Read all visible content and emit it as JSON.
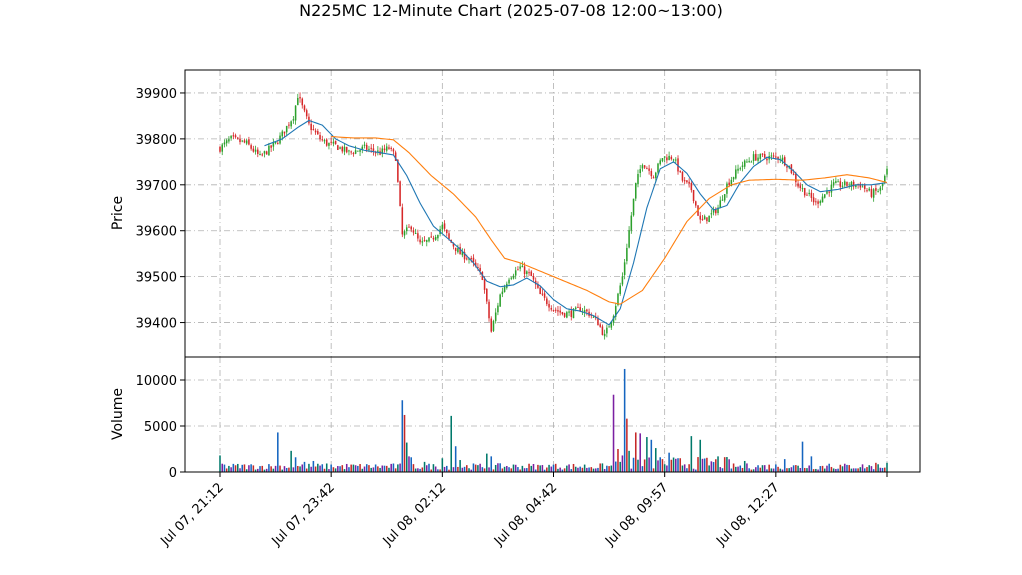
{
  "chart_data": {
    "type": "candlestick",
    "title": "N225MC 12-Minute Chart (2025-07-08 12:00~13:00)",
    "price_panel": {
      "ylabel": "Price",
      "ylim": [
        39325,
        39950
      ],
      "yticks": [
        39400,
        39500,
        39600,
        39700,
        39800,
        39900
      ],
      "grid": true
    },
    "volume_panel": {
      "ylabel": "Volume",
      "ylim": [
        0,
        12500
      ],
      "yticks": [
        0,
        5000,
        10000
      ],
      "grid": true
    },
    "x_ticks": [
      {
        "label": "Jul 07, 21:12",
        "index": 0
      },
      {
        "label": "Jul 07, 23:42",
        "index": 50
      },
      {
        "label": "Jul 08, 02:12",
        "index": 100
      },
      {
        "label": "Jul 08, 04:42",
        "index": 150
      },
      {
        "label": "Jul 08, 09:57",
        "index": 200
      },
      {
        "label": "Jul 08, 12:27",
        "index": 250
      },
      {
        "label": "",
        "index": 300
      }
    ],
    "bar_count": 301,
    "colors": {
      "up": "#2ca02c",
      "down": "#d62728",
      "ma_short": "#1f77b4",
      "ma_long": "#ff7f0e",
      "volume": [
        "#00796b",
        "#7b1fa2",
        "#1565c0",
        "#c62828"
      ],
      "grid": "#b0b0b0"
    },
    "close_anchors": [
      [
        0,
        39780
      ],
      [
        5,
        39800
      ],
      [
        12,
        39790
      ],
      [
        18,
        39760
      ],
      [
        25,
        39790
      ],
      [
        28,
        39810
      ],
      [
        33,
        39850
      ],
      [
        35,
        39895
      ],
      [
        40,
        39830
      ],
      [
        45,
        39800
      ],
      [
        48,
        39790
      ],
      [
        52,
        39785
      ],
      [
        58,
        39770
      ],
      [
        65,
        39780
      ],
      [
        72,
        39770
      ],
      [
        76,
        39780
      ],
      [
        79,
        39760
      ],
      [
        82,
        39590
      ],
      [
        86,
        39610
      ],
      [
        90,
        39570
      ],
      [
        95,
        39580
      ],
      [
        100,
        39610
      ],
      [
        103,
        39580
      ],
      [
        108,
        39550
      ],
      [
        112,
        39540
      ],
      [
        118,
        39500
      ],
      [
        122,
        39380
      ],
      [
        126,
        39460
      ],
      [
        130,
        39500
      ],
      [
        135,
        39520
      ],
      [
        140,
        39500
      ],
      [
        144,
        39460
      ],
      [
        150,
        39430
      ],
      [
        154,
        39420
      ],
      [
        158,
        39420
      ],
      [
        162,
        39430
      ],
      [
        166,
        39420
      ],
      [
        170,
        39400
      ],
      [
        173,
        39370
      ],
      [
        177,
        39420
      ],
      [
        181,
        39500
      ],
      [
        184,
        39600
      ],
      [
        187,
        39700
      ],
      [
        190,
        39750
      ],
      [
        195,
        39720
      ],
      [
        199,
        39760
      ],
      [
        204,
        39760
      ],
      [
        208,
        39710
      ],
      [
        212,
        39690
      ],
      [
        216,
        39620
      ],
      [
        220,
        39630
      ],
      [
        224,
        39650
      ],
      [
        228,
        39700
      ],
      [
        234,
        39740
      ],
      [
        240,
        39760
      ],
      [
        246,
        39760
      ],
      [
        252,
        39760
      ],
      [
        256,
        39740
      ],
      [
        260,
        39700
      ],
      [
        264,
        39680
      ],
      [
        268,
        39660
      ],
      [
        272,
        39680
      ],
      [
        276,
        39700
      ],
      [
        282,
        39700
      ],
      [
        288,
        39700
      ],
      [
        293,
        39680
      ],
      [
        297,
        39690
      ],
      [
        300,
        39730
      ]
    ],
    "ma_short_anchors": [
      [
        20,
        39785
      ],
      [
        28,
        39800
      ],
      [
        35,
        39825
      ],
      [
        40,
        39840
      ],
      [
        46,
        39830
      ],
      [
        52,
        39800
      ],
      [
        58,
        39785
      ],
      [
        65,
        39775
      ],
      [
        72,
        39770
      ],
      [
        78,
        39765
      ],
      [
        84,
        39720
      ],
      [
        90,
        39660
      ],
      [
        96,
        39610
      ],
      [
        102,
        39585
      ],
      [
        108,
        39560
      ],
      [
        114,
        39530
      ],
      [
        120,
        39490
      ],
      [
        126,
        39478
      ],
      [
        132,
        39482
      ],
      [
        138,
        39497
      ],
      [
        144,
        39480
      ],
      [
        150,
        39450
      ],
      [
        156,
        39430
      ],
      [
        162,
        39425
      ],
      [
        168,
        39415
      ],
      [
        175,
        39395
      ],
      [
        180,
        39430
      ],
      [
        186,
        39530
      ],
      [
        192,
        39650
      ],
      [
        198,
        39735
      ],
      [
        204,
        39750
      ],
      [
        210,
        39725
      ],
      [
        216,
        39680
      ],
      [
        222,
        39645
      ],
      [
        228,
        39655
      ],
      [
        234,
        39705
      ],
      [
        240,
        39740
      ],
      [
        246,
        39760
      ],
      [
        252,
        39755
      ],
      [
        258,
        39730
      ],
      [
        264,
        39700
      ],
      [
        270,
        39685
      ],
      [
        278,
        39690
      ],
      [
        286,
        39700
      ],
      [
        293,
        39700
      ],
      [
        300,
        39705
      ]
    ],
    "ma_long_anchors": [
      [
        50,
        39805
      ],
      [
        60,
        39802
      ],
      [
        70,
        39802
      ],
      [
        78,
        39798
      ],
      [
        85,
        39770
      ],
      [
        95,
        39720
      ],
      [
        105,
        39680
      ],
      [
        115,
        39630
      ],
      [
        122,
        39580
      ],
      [
        128,
        39540
      ],
      [
        135,
        39530
      ],
      [
        145,
        39510
      ],
      [
        155,
        39490
      ],
      [
        165,
        39470
      ],
      [
        175,
        39445
      ],
      [
        180,
        39440
      ],
      [
        190,
        39470
      ],
      [
        200,
        39540
      ],
      [
        210,
        39620
      ],
      [
        220,
        39670
      ],
      [
        230,
        39700
      ],
      [
        238,
        39710
      ],
      [
        250,
        39712
      ],
      [
        262,
        39710
      ],
      [
        272,
        39715
      ],
      [
        282,
        39722
      ],
      [
        292,
        39715
      ],
      [
        300,
        39705
      ]
    ],
    "volume_spikes": [
      [
        0,
        1800
      ],
      [
        1,
        900
      ],
      [
        26,
        4300
      ],
      [
        32,
        2300
      ],
      [
        34,
        1600
      ],
      [
        38,
        1100
      ],
      [
        42,
        1200
      ],
      [
        82,
        7800
      ],
      [
        83,
        6200
      ],
      [
        84,
        3200
      ],
      [
        85,
        1700
      ],
      [
        86,
        1600
      ],
      [
        92,
        1100
      ],
      [
        100,
        1500
      ],
      [
        104,
        6100
      ],
      [
        106,
        2800
      ],
      [
        108,
        1300
      ],
      [
        120,
        2000
      ],
      [
        122,
        1700
      ],
      [
        150,
        800
      ],
      [
        176,
        700
      ],
      [
        177,
        8400
      ],
      [
        179,
        2500
      ],
      [
        181,
        1800
      ],
      [
        182,
        11200
      ],
      [
        183,
        5800
      ],
      [
        184,
        2300
      ],
      [
        187,
        4300
      ],
      [
        189,
        4200
      ],
      [
        192,
        3800
      ],
      [
        194,
        3500
      ],
      [
        196,
        2600
      ],
      [
        198,
        1600
      ],
      [
        202,
        2100
      ],
      [
        212,
        3900
      ],
      [
        216,
        3500
      ],
      [
        224,
        1700
      ],
      [
        236,
        1200
      ],
      [
        254,
        1400
      ],
      [
        262,
        3300
      ],
      [
        266,
        1700
      ],
      [
        274,
        900
      ],
      [
        295,
        1000
      ],
      [
        300,
        1000
      ]
    ]
  }
}
